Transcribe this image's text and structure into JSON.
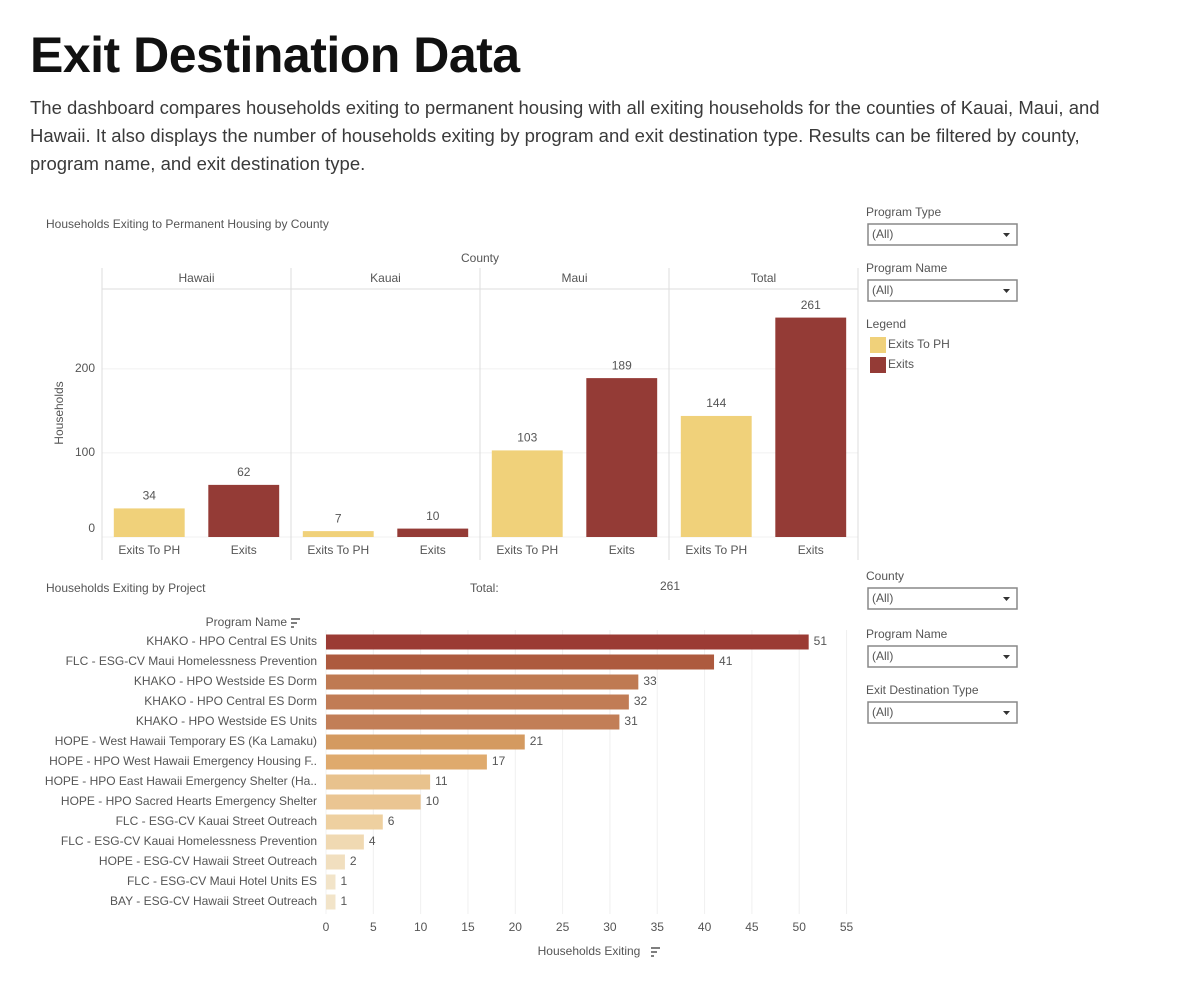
{
  "header": {
    "title": "Exit Destination Data",
    "description": "The dashboard compares households exiting to permanent housing with all exiting households for the counties of Kauai, Maui, and Hawaii. It also displays the number of households exiting by program and exit destination type. Results can be filtered by county, program name, and exit destination type."
  },
  "filters": [
    {
      "label": "Program Type",
      "value": "(All)"
    },
    {
      "label": "Program Name",
      "value": "(All)"
    },
    {
      "label": "County",
      "value": "(All)"
    },
    {
      "label": "Program Name",
      "value": "(All)"
    },
    {
      "label": "Exit Destination Type",
      "value": "(All)"
    }
  ],
  "chart_data": [
    {
      "type": "bar",
      "title": "Households Exiting to Permanent Housing by County",
      "facet_label": "County",
      "categories": [
        "Hawaii",
        "Kauai",
        "Maui",
        "Total"
      ],
      "series": [
        {
          "name": "Exits To PH",
          "color": "#f0d17a",
          "values": [
            34,
            7,
            103,
            144
          ]
        },
        {
          "name": "Exits",
          "color": "#943b36",
          "values": [
            62,
            10,
            189,
            261
          ]
        }
      ],
      "ylabel": "Households",
      "ylim": [
        0,
        295
      ],
      "yticks": [
        0,
        100,
        200
      ],
      "grid": true,
      "legend_title": "Legend"
    },
    {
      "type": "barh",
      "title": "Households Exiting by Project",
      "total_label": "Total:",
      "total_value": 261,
      "ylabel": "Program Name",
      "xlabel": "Households Exiting",
      "categories": [
        "KHAKO - HPO Central ES Units",
        "FLC - ESG-CV Maui Homelessness Prevention",
        "KHAKO - HPO Westside ES Dorm",
        "KHAKO - HPO Central ES Dorm",
        "KHAKO - HPO Westside ES Units",
        "HOPE - West Hawaii Temporary ES (Ka Lamaku)",
        "HOPE - HPO West Hawaii Emergency Housing F..",
        "HOPE - HPO East Hawaii Emergency Shelter (Ha..",
        "HOPE - HPO Sacred Hearts Emergency Shelter",
        "FLC - ESG-CV Kauai Street Outreach",
        "FLC - ESG-CV Kauai Homelessness Prevention",
        "HOPE - ESG-CV Hawaii Street Outreach",
        "FLC - ESG-CV Maui Hotel Units ES",
        "BAY - ESG-CV Hawaii Street Outreach"
      ],
      "values": [
        51,
        41,
        33,
        32,
        31,
        21,
        17,
        11,
        10,
        6,
        4,
        2,
        1,
        1
      ],
      "colors": [
        "#9b3b34",
        "#ad5a3e",
        "#bf7a52",
        "#c17c55",
        "#c27e57",
        "#d49a60",
        "#dfaa6d",
        "#e8c28d",
        "#eac592",
        "#eed0a0",
        "#f0d9b2",
        "#f1dfbf",
        "#f2e4c9",
        "#f2e4c9"
      ],
      "xlim": [
        0,
        56
      ],
      "xticks": [
        0,
        5,
        10,
        15,
        20,
        25,
        30,
        35,
        40,
        45,
        50,
        55
      ],
      "grid": true
    }
  ]
}
